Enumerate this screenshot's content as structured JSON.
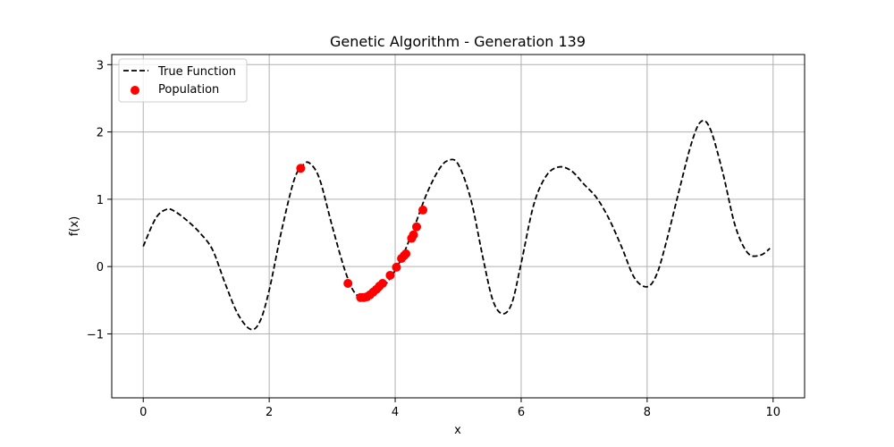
{
  "chart_data": {
    "type": "line",
    "title": "Genetic Algorithm - Generation 139",
    "xlabel": "x",
    "ylabel": "f(x)",
    "xlim": [
      -0.5,
      10.5
    ],
    "ylim": [
      -1.95,
      3.15
    ],
    "xticks": [
      0,
      2,
      4,
      6,
      8,
      10
    ],
    "yticks": [
      -1,
      0,
      1,
      2,
      3
    ],
    "ytick_labels": [
      "−1",
      "0",
      "1",
      "2",
      "3"
    ],
    "grid": true,
    "legend_position": "top-left",
    "series": [
      {
        "name": "True Function",
        "style": "dashed-line",
        "color": "#000000",
        "x": [
          0.0,
          0.2,
          0.37,
          0.5,
          0.7,
          0.9,
          1.1,
          1.3,
          1.5,
          1.7,
          1.85,
          2.0,
          2.2,
          2.4,
          2.55,
          2.65,
          2.8,
          3.0,
          3.2,
          3.35,
          3.5,
          3.7,
          3.9,
          4.1,
          4.3,
          4.5,
          4.7,
          4.85,
          5.0,
          5.2,
          5.4,
          5.55,
          5.7,
          5.85,
          6.0,
          6.2,
          6.4,
          6.6,
          6.8,
          7.0,
          7.2,
          7.4,
          7.6,
          7.8,
          8.0,
          8.15,
          8.3,
          8.5,
          8.7,
          8.85,
          9.0,
          9.2,
          9.4,
          9.6,
          9.8,
          9.95
        ],
        "y": [
          0.3,
          0.72,
          0.85,
          0.82,
          0.68,
          0.5,
          0.25,
          -0.25,
          -0.7,
          -0.93,
          -0.82,
          -0.35,
          0.55,
          1.3,
          1.52,
          1.53,
          1.3,
          0.6,
          -0.05,
          -0.38,
          -0.46,
          -0.4,
          -0.2,
          0.12,
          0.58,
          1.08,
          1.45,
          1.58,
          1.52,
          1.0,
          0.1,
          -0.5,
          -0.7,
          -0.55,
          0.05,
          0.92,
          1.35,
          1.48,
          1.42,
          1.22,
          1.02,
          0.7,
          0.28,
          -0.17,
          -0.3,
          -0.12,
          0.35,
          1.1,
          1.82,
          2.15,
          2.05,
          1.4,
          0.6,
          0.2,
          0.17,
          0.27
        ]
      }
    ],
    "scatter": {
      "name": "Population",
      "color": "#ff0000",
      "x": [
        2.5,
        3.25,
        3.45,
        3.5,
        3.55,
        3.6,
        3.65,
        3.7,
        3.75,
        3.8,
        3.92,
        4.02,
        4.1,
        4.14,
        4.17,
        4.26,
        4.29,
        4.34,
        4.44
      ],
      "y": [
        1.46,
        -0.25,
        -0.46,
        -0.46,
        -0.45,
        -0.42,
        -0.38,
        -0.34,
        -0.29,
        -0.25,
        -0.13,
        -0.01,
        0.12,
        0.16,
        0.19,
        0.42,
        0.47,
        0.59,
        0.84
      ]
    }
  }
}
